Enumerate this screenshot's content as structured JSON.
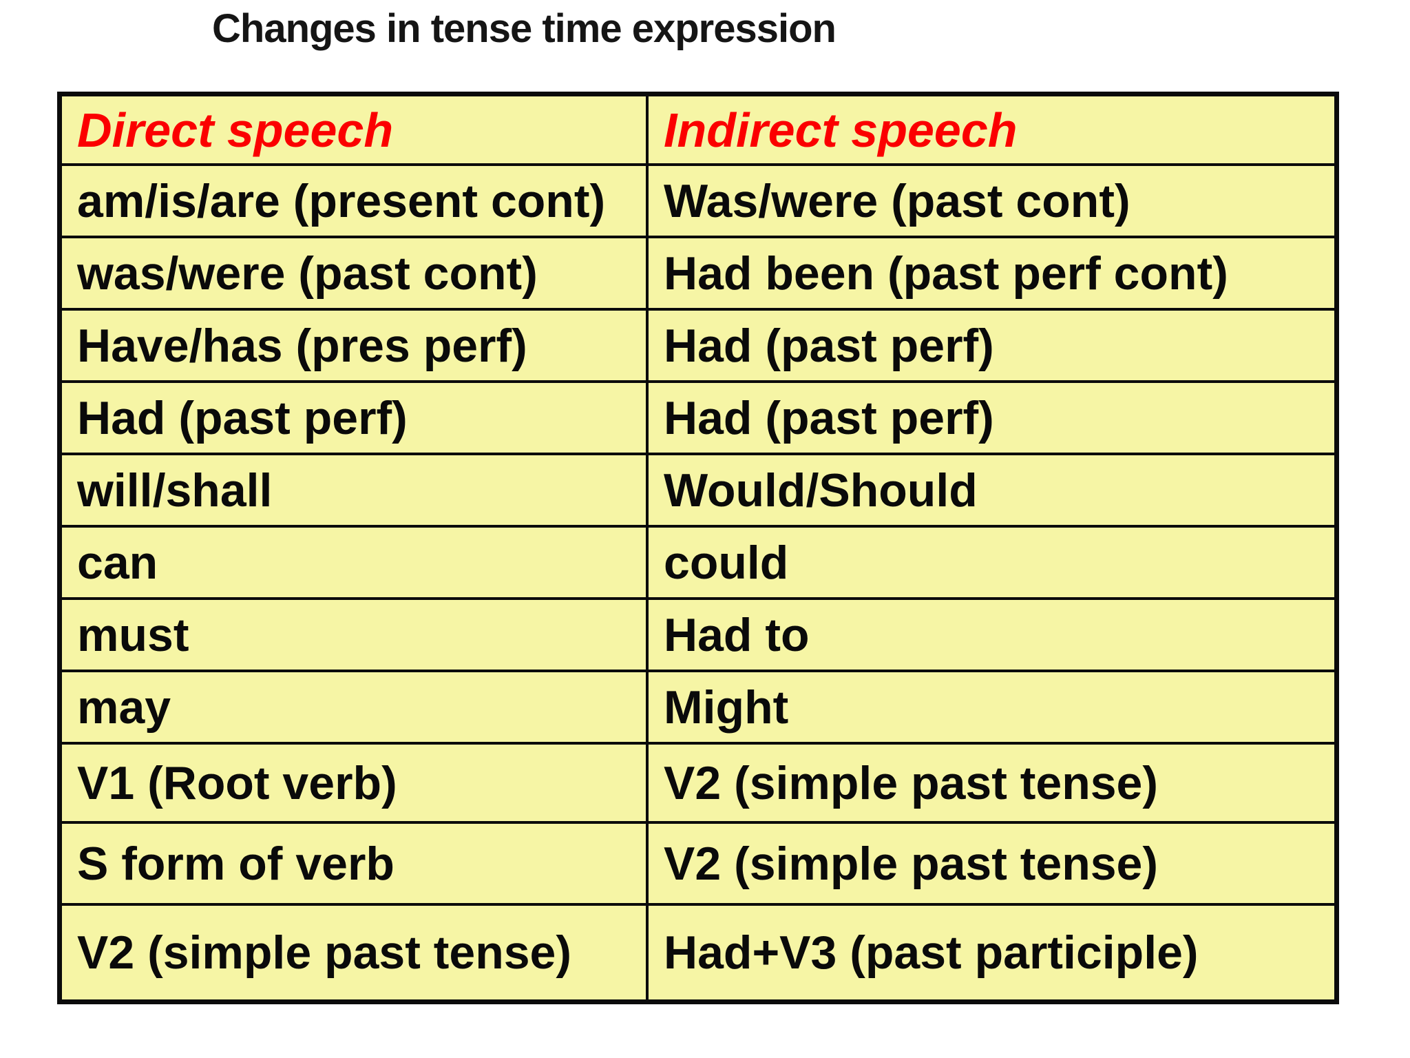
{
  "page": {
    "background": "#ffffff"
  },
  "title": "Changes in tense time expression",
  "table": {
    "header": {
      "direct": "Direct speech",
      "indirect": "Indirect speech"
    },
    "rows": [
      {
        "direct": "am/is/are (present cont)",
        "indirect": "Was/were (past cont)"
      },
      {
        "direct": "was/were (past cont)",
        "indirect": "Had been (past perf cont)"
      },
      {
        "direct": "Have/has (pres perf)",
        "indirect": "Had (past perf)"
      },
      {
        "direct": "Had (past perf)",
        "indirect": "Had (past perf)"
      },
      {
        "direct": "will/shall",
        "indirect": "Would/Should"
      },
      {
        "direct": "can",
        "indirect": "could"
      },
      {
        "direct": "must",
        "indirect": "Had to"
      },
      {
        "direct": "may",
        "indirect": "Might"
      },
      {
        "direct": "V1 (Root verb)",
        "indirect": "V2 (simple past tense)"
      },
      {
        "direct": "S form of verb",
        "indirect": "V2 (simple past tense)"
      },
      {
        "direct": "V2 (simple past tense)",
        "indirect": "Had+V3 (past participle)"
      }
    ],
    "colors": {
      "cell_bg": "#f6f5a5",
      "border": "#0b0b0b",
      "header_text": "#fb0000",
      "body_text": "#0a0a0a"
    }
  }
}
